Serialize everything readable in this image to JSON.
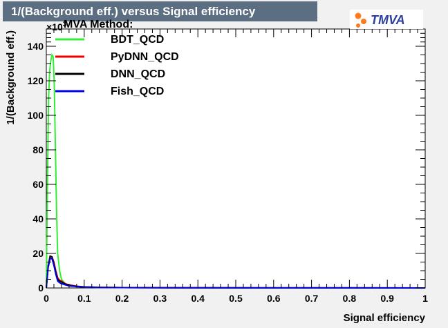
{
  "chart_data": {
    "type": "line",
    "title": "1/(Background eff.) versus Signal efficiency",
    "xlabel": "Signal efficiency",
    "ylabel": "1/(Background eff.)",
    "exponent_label": "×10",
    "exponent_sup": "3",
    "xlim": [
      0,
      1
    ],
    "ylim": [
      0,
      150
    ],
    "x_ticks": [
      "0",
      "0.1",
      "0.2",
      "0.3",
      "0.4",
      "0.5",
      "0.6",
      "0.7",
      "0.8",
      "0.9",
      "1"
    ],
    "y_ticks": [
      "0",
      "20",
      "40",
      "60",
      "80",
      "100",
      "120",
      "140"
    ],
    "legend_header": "MVA Method:",
    "grid": false,
    "legend_position": "top-left",
    "series": [
      {
        "name": "BDT_QCD",
        "color": "#33ee33",
        "x": [
          0.0,
          0.003,
          0.006,
          0.009,
          0.012,
          0.015,
          0.018,
          0.021,
          0.024,
          0.027,
          0.03,
          0.035,
          0.04,
          0.05,
          0.06,
          0.08,
          0.1,
          0.15,
          0.2,
          0.4,
          0.6,
          0.8,
          1.0
        ],
        "y": [
          0,
          60,
          110,
          126,
          132,
          135,
          134,
          118,
          80,
          45,
          20,
          10,
          5,
          2.5,
          1.5,
          0.8,
          0.5,
          0.3,
          0.2,
          0.1,
          0.05,
          0.03,
          0.01
        ]
      },
      {
        "name": "PyDNN_QCD",
        "color": "#ee0000",
        "x": [
          0.0,
          0.005,
          0.01,
          0.015,
          0.02,
          0.025,
          0.03,
          0.035,
          0.04,
          0.05,
          0.06,
          0.08,
          0.1,
          0.15,
          0.2,
          0.4,
          0.6,
          0.8,
          1.0
        ],
        "y": [
          0,
          12,
          18,
          18,
          15,
          10,
          6,
          4.5,
          4,
          2.5,
          1.8,
          1.0,
          0.6,
          0.3,
          0.2,
          0.1,
          0.05,
          0.02,
          0.01
        ]
      },
      {
        "name": "DNN_QCD",
        "color": "#000000",
        "x": [
          0.0,
          0.005,
          0.01,
          0.015,
          0.02,
          0.025,
          0.03,
          0.035,
          0.04,
          0.05,
          0.06,
          0.08,
          0.1,
          0.15,
          0.2,
          0.4,
          0.6,
          0.8,
          1.0
        ],
        "y": [
          0,
          13,
          18.5,
          18,
          14,
          9,
          5,
          4,
          3.5,
          2.2,
          1.6,
          0.9,
          0.6,
          0.3,
          0.2,
          0.1,
          0.05,
          0.02,
          0.01
        ]
      },
      {
        "name": "Fish_QCD",
        "color": "#0000ee",
        "x": [
          0.0,
          0.005,
          0.01,
          0.015,
          0.02,
          0.025,
          0.03,
          0.035,
          0.04,
          0.05,
          0.06,
          0.08,
          0.1,
          0.15,
          0.2,
          0.4,
          0.6,
          0.8,
          1.0
        ],
        "y": [
          0,
          12,
          17,
          17,
          13,
          8,
          4,
          3,
          2.5,
          1.8,
          1.2,
          0.8,
          0.5,
          0.3,
          0.2,
          0.1,
          0.05,
          0.02,
          0.01
        ]
      }
    ]
  },
  "logo": {
    "text": "TMVA",
    "accent": "#ff7a1a",
    "text_color": "#2a3fa0"
  }
}
